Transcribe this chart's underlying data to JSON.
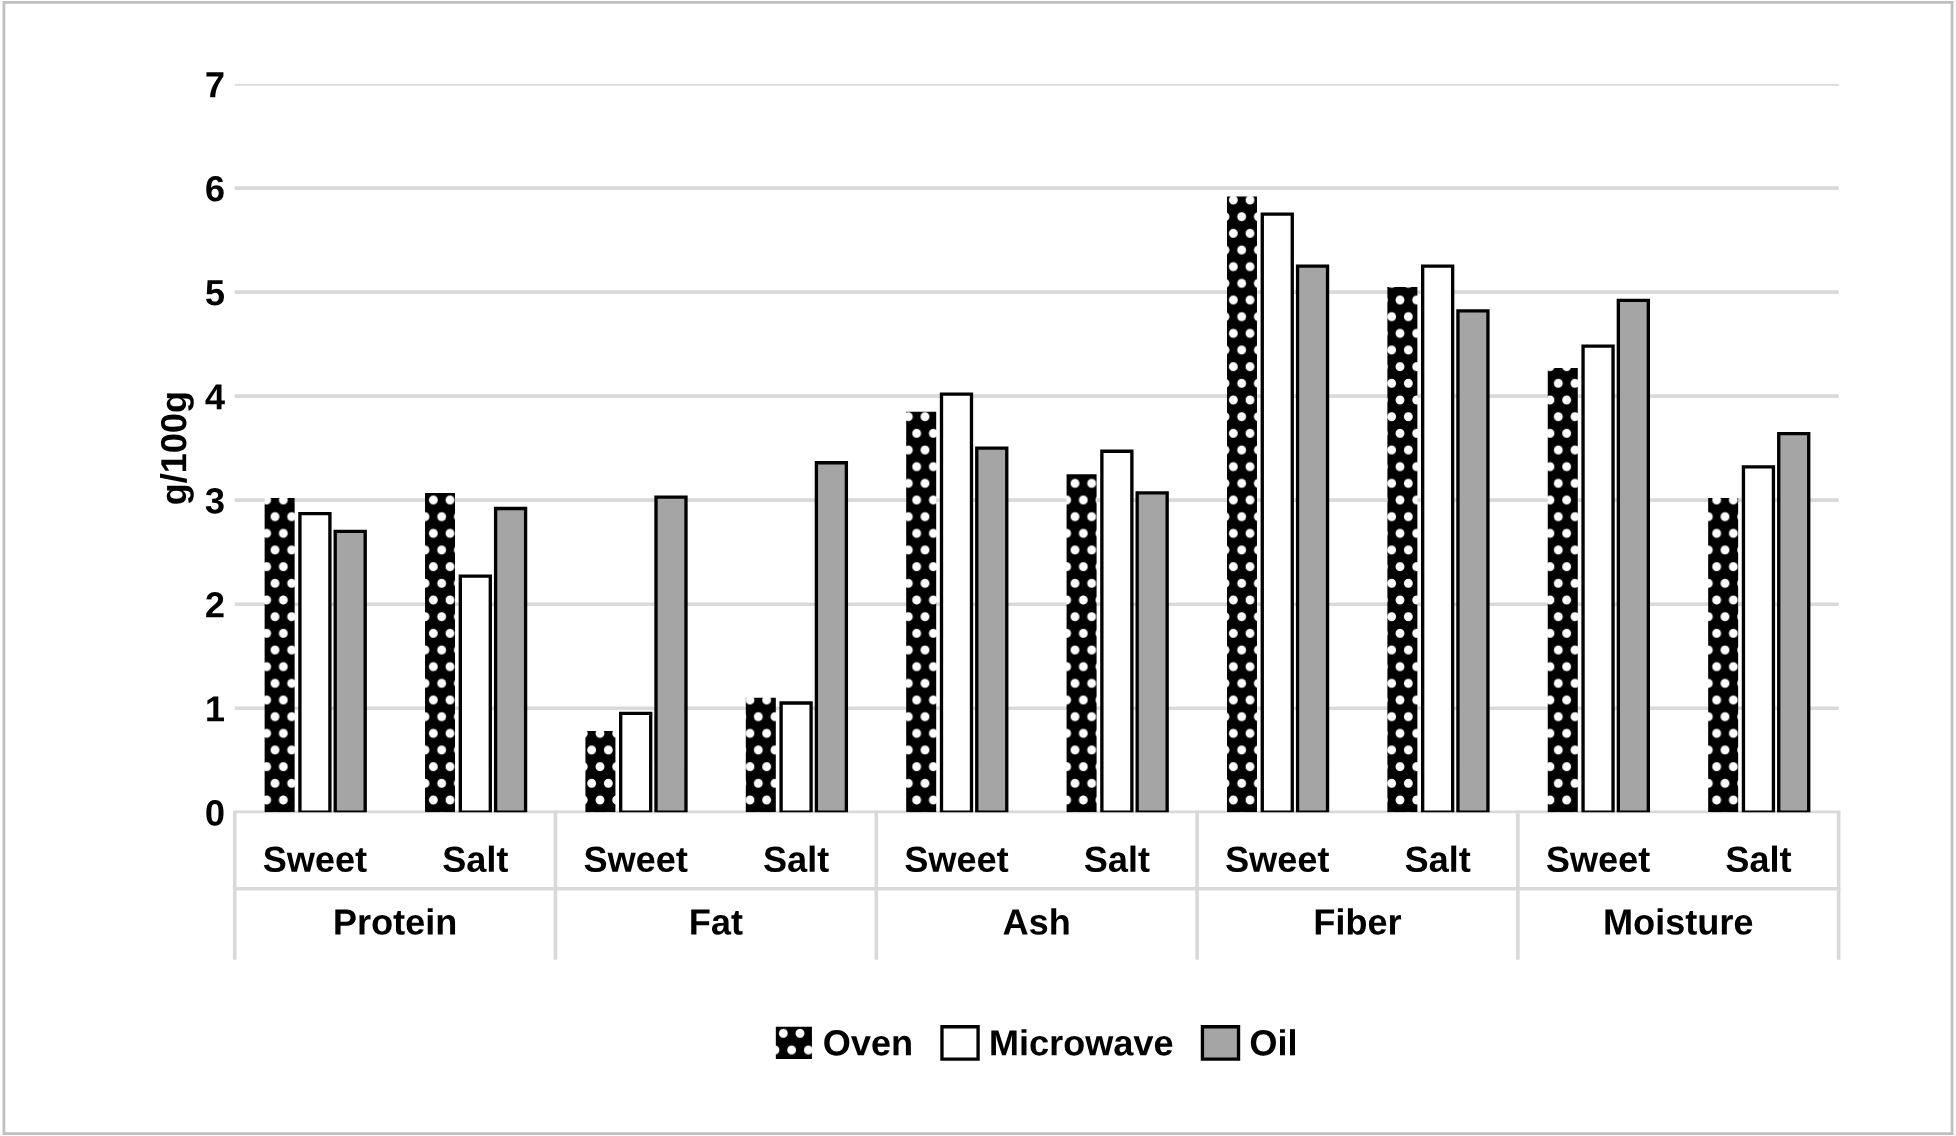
{
  "chart_data": {
    "type": "bar",
    "ylabel": "g/100g",
    "categories": [
      "Sweet",
      "Salt",
      "Sweet",
      "Salt",
      "Sweet",
      "Salt",
      "Sweet",
      "Salt",
      "Sweet",
      "Salt"
    ],
    "annotations": [
      "Protein",
      "Fat",
      "Ash",
      "Fiber",
      "Moisture"
    ],
    "series": [
      {
        "name": "Oven",
        "color": "#000000",
        "values": [
          3.02,
          3.07,
          0.78,
          1.1,
          3.85,
          3.25,
          5.92,
          5.05,
          4.27,
          3.02
        ]
      },
      {
        "name": "Microwave",
        "color": "#ffffff",
        "values": [
          2.87,
          2.27,
          0.95,
          1.05,
          4.02,
          3.47,
          5.75,
          5.25,
          4.48,
          3.32
        ]
      },
      {
        "name": "Oil",
        "color": "#a5a5a5",
        "values": [
          2.7,
          2.92,
          3.03,
          3.36,
          3.5,
          3.07,
          5.25,
          4.82,
          4.92,
          3.64
        ]
      }
    ],
    "ylim": [
      0,
      7
    ],
    "yticks": [
      0,
      1,
      2,
      3,
      4,
      5,
      6,
      7
    ],
    "grid": "y",
    "legend": "bottom"
  }
}
